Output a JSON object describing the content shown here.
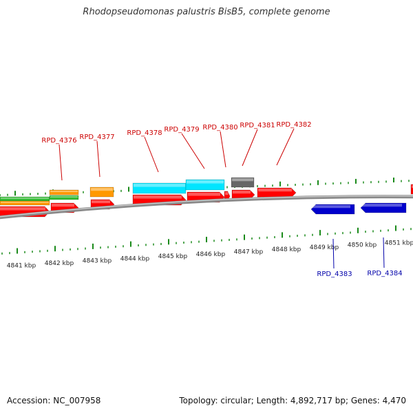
{
  "title": "Rhodopseudomonas palustris BisB5, complete genome",
  "accession": "Accession: NC_007958",
  "topology": "Topology: circular; Length: 4,892,717 bp; Genes: 4,470",
  "colors": {
    "forward_gene": "#ff0000",
    "reverse_gene": "#0000cc",
    "tick": "#1a8a1a",
    "backbone": "#888888",
    "orange": "#ff9900",
    "green": "#33bb33",
    "cyan": "#00e5ff",
    "gray_feature": "#666666",
    "forward_label": "#cc0000",
    "reverse_label": "#0000aa"
  },
  "kbp_labels": [
    "4841 kbp",
    "4842 kbp",
    "4843 kbp",
    "4844 kbp",
    "4845 kbp",
    "4846 kbp",
    "4847 kbp",
    "4848 kbp",
    "4849 kbp",
    "4850 kbp",
    "4851 kbp"
  ],
  "forward_genes": [
    "RPD_4376",
    "RPD_4377",
    "RPD_4378",
    "RPD_4379",
    "RPD_4380",
    "RPD_4381",
    "RPD_4382"
  ],
  "reverse_genes": [
    "RPD_4383",
    "RPD_4384"
  ]
}
